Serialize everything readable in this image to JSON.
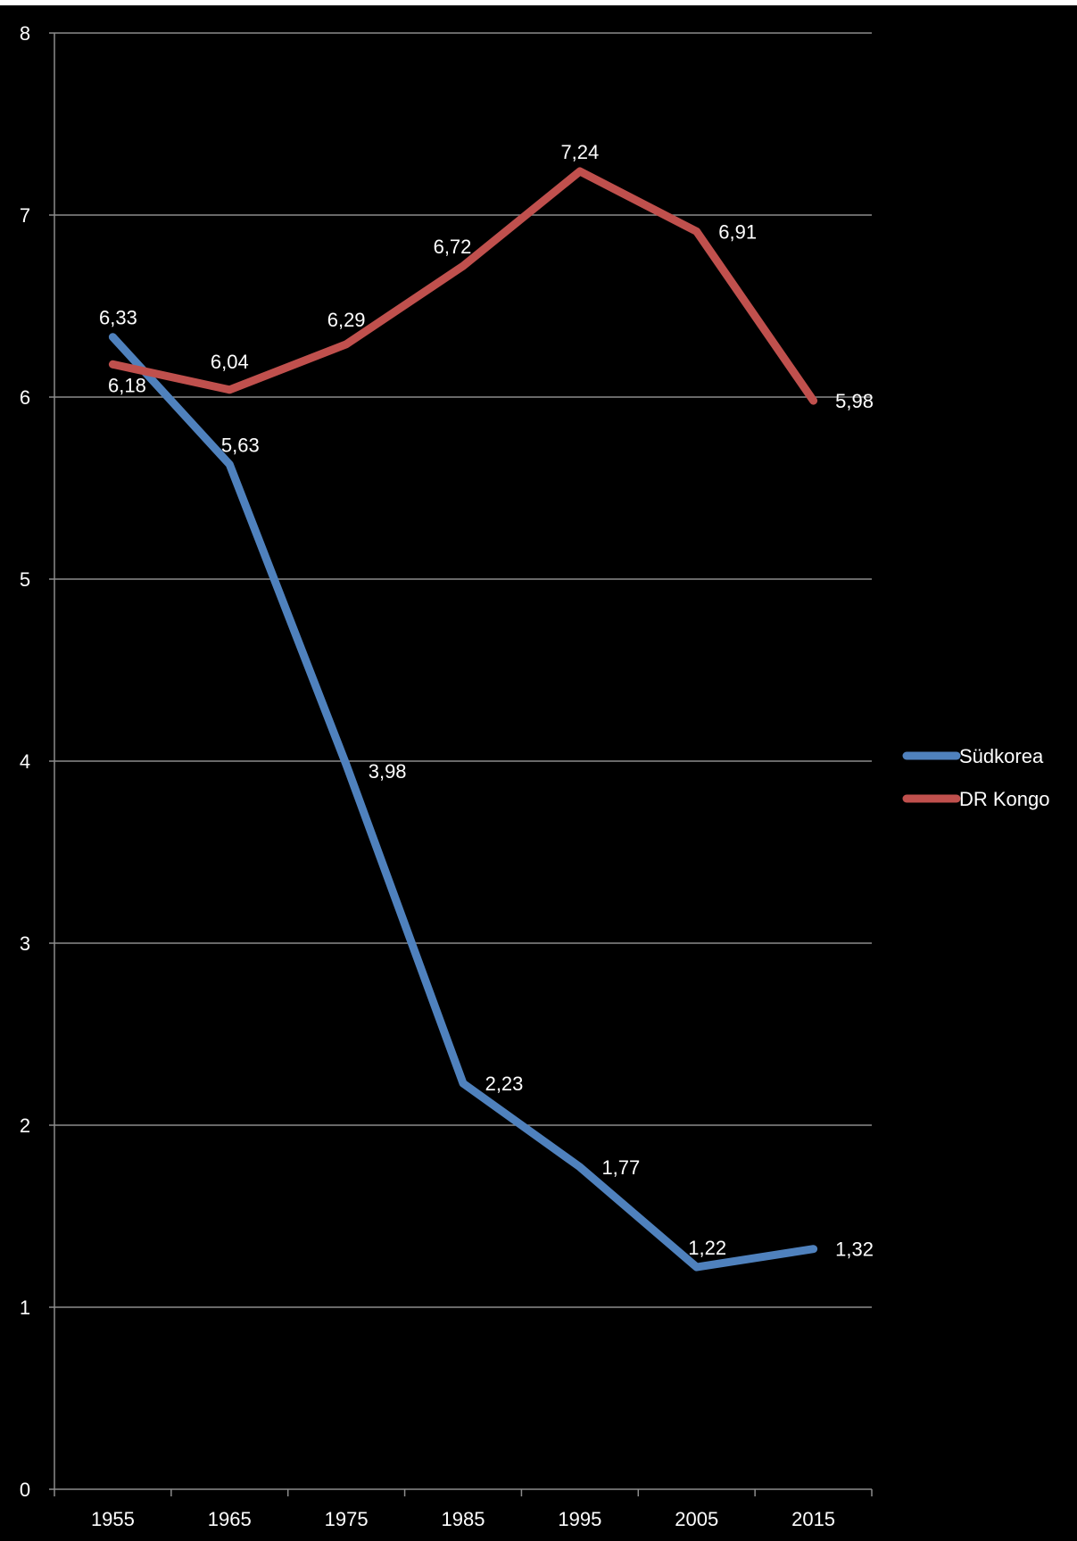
{
  "chart_data": {
    "type": "line",
    "categories": [
      "1955",
      "1965",
      "1975",
      "1985",
      "1995",
      "2005",
      "2015"
    ],
    "y_ticks": [
      "0",
      "1",
      "2",
      "3",
      "4",
      "5",
      "6",
      "7",
      "8"
    ],
    "ylim": [
      0,
      8
    ],
    "grid": true,
    "legend_position": "right",
    "series": [
      {
        "name": "Südkorea",
        "color": "#4f81bd",
        "values": [
          6.33,
          5.63,
          3.98,
          2.23,
          1.77,
          1.22,
          1.32
        ],
        "labels": [
          "6,33",
          "5,63",
          "3,98",
          "2,23",
          "1,77",
          "1,22",
          "1,32"
        ]
      },
      {
        "name": "DR Kongo",
        "color": "#c0504d",
        "values": [
          6.18,
          6.04,
          6.29,
          6.72,
          7.24,
          6.91,
          5.98
        ],
        "labels": [
          "6,18",
          "6,04",
          "6,29",
          "6,72",
          "7,24",
          "6,91",
          "5,98"
        ]
      }
    ],
    "background": "#000000",
    "gridline_color": "#8c8c8c",
    "text_color": "#ffffff"
  }
}
